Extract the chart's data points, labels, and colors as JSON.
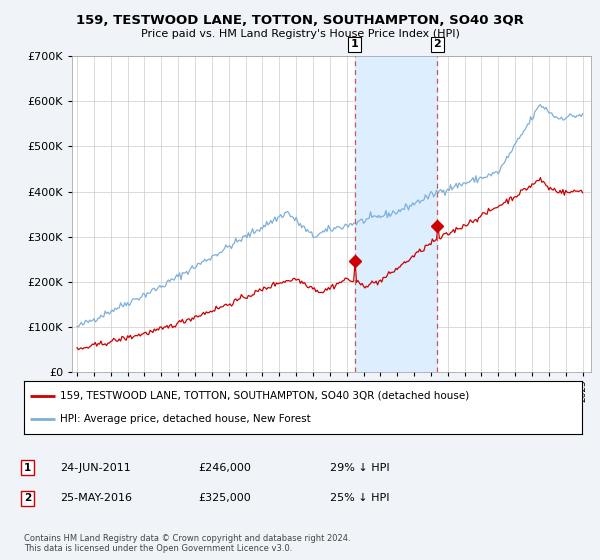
{
  "title": "159, TESTWOOD LANE, TOTTON, SOUTHAMPTON, SO40 3QR",
  "subtitle": "Price paid vs. HM Land Registry's House Price Index (HPI)",
  "legend_property": "159, TESTWOOD LANE, TOTTON, SOUTHAMPTON, SO40 3QR (detached house)",
  "legend_hpi": "HPI: Average price, detached house, New Forest",
  "sale1_date": "24-JUN-2011",
  "sale1_price": "£246,000",
  "sale1_hpi": "29% ↓ HPI",
  "sale1_year": 2011.48,
  "sale1_value": 246000,
  "sale2_date": "25-MAY-2016",
  "sale2_price": "£325,000",
  "sale2_hpi": "25% ↓ HPI",
  "sale2_year": 2016.38,
  "sale2_value": 325000,
  "ylim": [
    0,
    700000
  ],
  "xlim_left": 1994.7,
  "xlim_right": 2025.5,
  "copyright": "Contains HM Land Registry data © Crown copyright and database right 2024.\nThis data is licensed under the Open Government Licence v3.0.",
  "background_color": "#f0f4f8",
  "plot_bg": "#ffffff",
  "red_color": "#cc0000",
  "blue_color": "#7fb0d8",
  "dashed_color": "#cc5555",
  "span_color": "#ddeeff"
}
